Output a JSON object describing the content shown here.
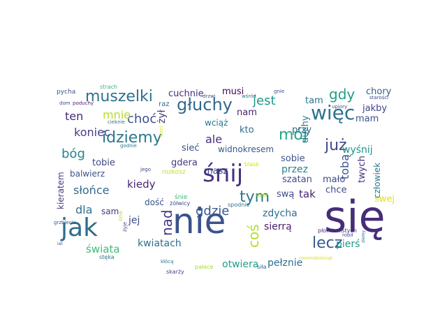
{
  "word_cloud": {
    "words": [
      {
        "text": "się",
        "color": "#472c7a"
      },
      {
        "text": "nie",
        "color": "#3b528b"
      },
      {
        "text": "śnij",
        "color": "#46327e"
      },
      {
        "text": "jak",
        "color": "#2f6c8e"
      },
      {
        "text": "więc",
        "color": "#2c728e"
      },
      {
        "text": "głuchy",
        "color": "#31688e"
      },
      {
        "text": "muszelki",
        "color": "#2c728e"
      },
      {
        "text": "idziemy",
        "color": "#2a788e"
      },
      {
        "text": "mój",
        "color": "#22a785"
      },
      {
        "text": "lecz",
        "color": "#38598c"
      },
      {
        "text": "tym",
        "color": "#2a788e"
      },
      {
        "text": "już",
        "color": "#3f4889"
      },
      {
        "text": "nad",
        "color": "#443a83"
      },
      {
        "text": "coś",
        "color": "#b5de2b"
      },
      {
        "text": "gdy",
        "color": "#1fa088"
      },
      {
        "text": "jest",
        "color": "#1f9a8a"
      },
      {
        "text": "gdzie",
        "color": "#38588c"
      },
      {
        "text": "choć",
        "color": "#3b528b"
      },
      {
        "text": "bóg",
        "color": "#25858e"
      },
      {
        "text": "koniec",
        "color": "#433e85"
      },
      {
        "text": "mnie",
        "color": "#b8de29"
      },
      {
        "text": "ten",
        "color": "#482878"
      },
      {
        "text": "ale",
        "color": "#472d7b"
      },
      {
        "text": "tobą",
        "color": "#3a548c"
      },
      {
        "text": "słońce",
        "color": "#306a8e"
      },
      {
        "text": "dla",
        "color": "#2d708e"
      },
      {
        "text": "kiedy",
        "color": "#482576"
      },
      {
        "text": "tak",
        "color": "#482374"
      },
      {
        "text": "świata",
        "color": "#3dbc74"
      },
      {
        "text": "otwiera",
        "color": "#1f9e89"
      },
      {
        "text": "zdycha",
        "color": "#2e6e8e"
      },
      {
        "text": "pierś",
        "color": "#1f9a8a"
      },
      {
        "text": "kwiatach",
        "color": "#2d718e"
      },
      {
        "text": "jej",
        "color": "#3e4c8a"
      },
      {
        "text": "sierrą",
        "color": "#481a6c"
      },
      {
        "text": "pełznie",
        "color": "#2e6f8e"
      },
      {
        "text": "przez",
        "color": "#26828e"
      },
      {
        "text": "cuchnie",
        "color": "#472a7a"
      },
      {
        "text": "musi",
        "color": "#440154"
      },
      {
        "text": "kto",
        "color": "#31688e"
      },
      {
        "text": "nam",
        "color": "#482173"
      },
      {
        "text": "przy",
        "color": "#31688e"
      },
      {
        "text": "wyśnij",
        "color": "#1f958b"
      },
      {
        "text": "chory",
        "color": "#355f8d"
      },
      {
        "text": "mam",
        "color": "#3b528b"
      },
      {
        "text": "jakby",
        "color": "#404688"
      },
      {
        "text": "tam",
        "color": "#2c738e"
      },
      {
        "text": "duchy",
        "color": "#287d8e"
      },
      {
        "text": "żył",
        "color": "#453882"
      },
      {
        "text": "tobie",
        "color": "#3e4989"
      },
      {
        "text": "sieć",
        "color": "#3b528b"
      },
      {
        "text": "gdera",
        "color": "#453781"
      },
      {
        "text": "masz",
        "color": "#3e4989"
      },
      {
        "text": "widnokresem",
        "color": "#39568c"
      },
      {
        "text": "sobie",
        "color": "#3a538b"
      },
      {
        "text": "szatan",
        "color": "#3e4c8a"
      },
      {
        "text": "mało",
        "color": "#3f4889"
      },
      {
        "text": "twych",
        "color": "#46327e"
      },
      {
        "text": "chce",
        "color": "#3d4d8a"
      },
      {
        "text": "swą",
        "color": "#3e4a89"
      },
      {
        "text": "swej",
        "color": "#dde318"
      },
      {
        "text": "człowiek",
        "color": "#2a768e"
      },
      {
        "text": "balwierz",
        "color": "#3b528b"
      },
      {
        "text": "sam",
        "color": "#443a83"
      },
      {
        "text": "dość",
        "color": "#3a548c"
      },
      {
        "text": "wciąż",
        "color": "#2a778e"
      },
      {
        "text": "raz",
        "color": "#31688e"
      },
      {
        "text": "kieratem",
        "color": "#443983"
      },
      {
        "text": "rozkosz",
        "color": "#c2df23"
      },
      {
        "text": "śnie",
        "color": "#35b779"
      },
      {
        "text": "żółwicy",
        "color": "#3f4788"
      },
      {
        "text": "spodnie",
        "color": "#2c728e"
      },
      {
        "text": "płomienistych",
        "color": "#482878"
      },
      {
        "text": "skarży",
        "color": "#404588"
      },
      {
        "text": "pałace",
        "color": "#a5db36"
      },
      {
        "text": "siła",
        "color": "#31688e"
      },
      {
        "text": "blask",
        "color": "#d8e219"
      },
      {
        "text": "pycha",
        "color": "#3b528b"
      },
      {
        "text": "strach",
        "color": "#35b779"
      },
      {
        "text": "poduchy",
        "color": "#482173"
      },
      {
        "text": "dom",
        "color": "#3e4c8a"
      },
      {
        "text": "cieknie",
        "color": "#2d708e"
      },
      {
        "text": "godnie",
        "color": "#2a788e"
      },
      {
        "text": "grzbiecie",
        "color": "#3b528b"
      },
      {
        "text": "jego",
        "color": "#3e4989"
      },
      {
        "text": "iat",
        "color": "#3b528b"
      },
      {
        "text": "stęka",
        "color": "#2d708e"
      },
      {
        "text": "ona",
        "color": "#b5de2b"
      },
      {
        "text": "kłócą",
        "color": "#2c728e"
      },
      {
        "text": "żyje",
        "color": "#3e4989"
      },
      {
        "text": "drzwi",
        "color": "#3b528b"
      },
      {
        "text": "wśród",
        "color": "#2d708e"
      },
      {
        "text": "gnie",
        "color": "#3e4c8a"
      },
      {
        "text": "upiory",
        "color": "#3b528b"
      },
      {
        "text": "starości",
        "color": "#3e4c8a"
      },
      {
        "text": "robił",
        "color": "#3e4989"
      },
      {
        "text": "upór",
        "color": "#b5de2b"
      },
      {
        "text": "ziemy",
        "color": "#31688e"
      },
      {
        "text": "osiemdziesiąt",
        "color": "#dde318"
      },
      {
        "text": "sieci",
        "color": "#dde318"
      }
    ]
  }
}
